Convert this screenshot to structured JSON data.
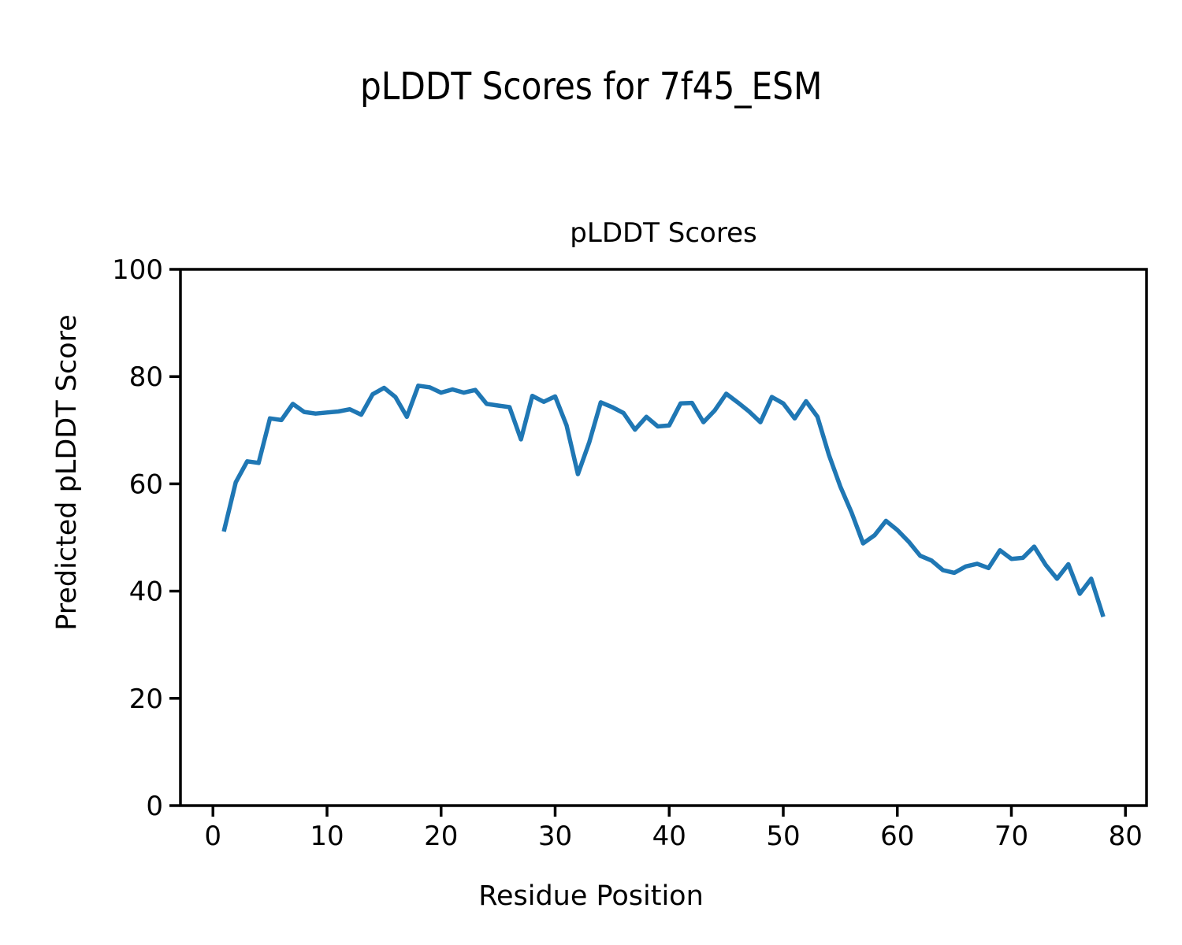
{
  "figure": {
    "suptitle": "pLDDT Scores for 7f45_ESM"
  },
  "chart_data": {
    "type": "line",
    "title": "pLDDT Scores",
    "xlabel": "Residue Position",
    "ylabel": "Predicted pLDDT Score",
    "xlim": [
      -2.85,
      81.85
    ],
    "ylim": [
      0,
      100
    ],
    "xticks": [
      0,
      10,
      20,
      30,
      40,
      50,
      60,
      70,
      80
    ],
    "yticks": [
      0,
      20,
      40,
      60,
      80,
      100
    ],
    "grid": false,
    "legend": "none",
    "line_color": "#1f77b4",
    "axis_color": "#000000",
    "series": [
      {
        "name": "pLDDT",
        "x": [
          1,
          2,
          3,
          4,
          5,
          6,
          7,
          8,
          9,
          10,
          11,
          12,
          13,
          14,
          15,
          16,
          17,
          18,
          19,
          20,
          21,
          22,
          23,
          24,
          25,
          26,
          27,
          28,
          29,
          30,
          31,
          32,
          33,
          34,
          35,
          36,
          37,
          38,
          39,
          40,
          41,
          42,
          43,
          44,
          45,
          46,
          47,
          48,
          49,
          50,
          51,
          52,
          53,
          54,
          55,
          56,
          57,
          58,
          59,
          60,
          61,
          62,
          63,
          64,
          65,
          66,
          67,
          68,
          69,
          70,
          71,
          72,
          73,
          74,
          75,
          76,
          77,
          78
        ],
        "y": [
          51.5,
          60.3,
          64.2,
          63.9,
          72.2,
          71.9,
          74.9,
          73.4,
          73.1,
          73.3,
          73.5,
          73.9,
          72.9,
          76.7,
          77.9,
          76.2,
          72.5,
          78.3,
          78.0,
          77.0,
          77.6,
          77.0,
          77.5,
          74.9,
          74.6,
          74.3,
          68.3,
          76.4,
          75.3,
          76.3,
          70.9,
          61.8,
          67.8,
          75.2,
          74.3,
          73.2,
          70.1,
          72.5,
          70.7,
          70.9,
          75.0,
          75.1,
          71.5,
          73.7,
          76.8,
          75.2,
          73.5,
          71.5,
          76.2,
          75.0,
          72.2,
          75.4,
          72.5,
          65.4,
          59.5,
          54.6,
          48.9,
          50.4,
          53.1,
          51.4,
          49.2,
          46.6,
          45.7,
          43.9,
          43.4,
          44.6,
          45.1,
          44.3,
          47.6,
          46.0,
          46.2,
          48.3,
          44.9,
          42.3,
          45.0,
          39.5,
          42.3,
          35.6
        ]
      }
    ]
  }
}
